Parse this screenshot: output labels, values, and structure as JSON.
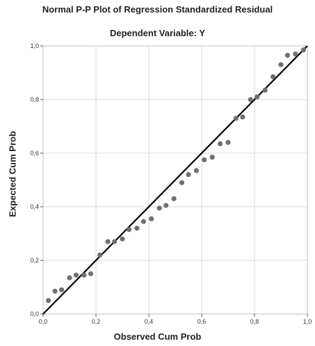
{
  "chart_data": {
    "type": "scatter",
    "title": "Normal P-P Plot of Regression Standardized Residual",
    "subtitle": "Dependent Variable: Y",
    "xlabel": "Observed Cum Prob",
    "ylabel": "Expected Cum Prob",
    "xlim": [
      0,
      1
    ],
    "ylim": [
      0,
      1
    ],
    "xticks": [
      "0,0",
      "0,2",
      "0,4",
      "0,6",
      "0,8",
      "1,0"
    ],
    "yticks": [
      "0,0",
      "0,2",
      "0,4",
      "0,6",
      "0,8",
      "1,0"
    ],
    "grid": true,
    "reference_line": {
      "from": [
        0,
        0
      ],
      "to": [
        1,
        1
      ]
    },
    "colors": {
      "points": "#707070",
      "line": "#000000",
      "grid": "#d9d9d9",
      "frame": "#bfbfbf"
    },
    "points": [
      {
        "x": 0.02,
        "y": 0.05
      },
      {
        "x": 0.045,
        "y": 0.085
      },
      {
        "x": 0.07,
        "y": 0.09
      },
      {
        "x": 0.1,
        "y": 0.135
      },
      {
        "x": 0.125,
        "y": 0.145
      },
      {
        "x": 0.155,
        "y": 0.145
      },
      {
        "x": 0.18,
        "y": 0.15
      },
      {
        "x": 0.215,
        "y": 0.22
      },
      {
        "x": 0.245,
        "y": 0.27
      },
      {
        "x": 0.27,
        "y": 0.27
      },
      {
        "x": 0.3,
        "y": 0.28
      },
      {
        "x": 0.325,
        "y": 0.315
      },
      {
        "x": 0.355,
        "y": 0.32
      },
      {
        "x": 0.38,
        "y": 0.345
      },
      {
        "x": 0.41,
        "y": 0.355
      },
      {
        "x": 0.44,
        "y": 0.395
      },
      {
        "x": 0.465,
        "y": 0.405
      },
      {
        "x": 0.495,
        "y": 0.43
      },
      {
        "x": 0.525,
        "y": 0.49
      },
      {
        "x": 0.55,
        "y": 0.52
      },
      {
        "x": 0.58,
        "y": 0.535
      },
      {
        "x": 0.61,
        "y": 0.575
      },
      {
        "x": 0.64,
        "y": 0.585
      },
      {
        "x": 0.67,
        "y": 0.635
      },
      {
        "x": 0.7,
        "y": 0.64
      },
      {
        "x": 0.73,
        "y": 0.73
      },
      {
        "x": 0.755,
        "y": 0.735
      },
      {
        "x": 0.785,
        "y": 0.8
      },
      {
        "x": 0.81,
        "y": 0.81
      },
      {
        "x": 0.84,
        "y": 0.835
      },
      {
        "x": 0.87,
        "y": 0.885
      },
      {
        "x": 0.9,
        "y": 0.93
      },
      {
        "x": 0.925,
        "y": 0.965
      },
      {
        "x": 0.955,
        "y": 0.97
      },
      {
        "x": 0.985,
        "y": 0.985
      }
    ]
  }
}
